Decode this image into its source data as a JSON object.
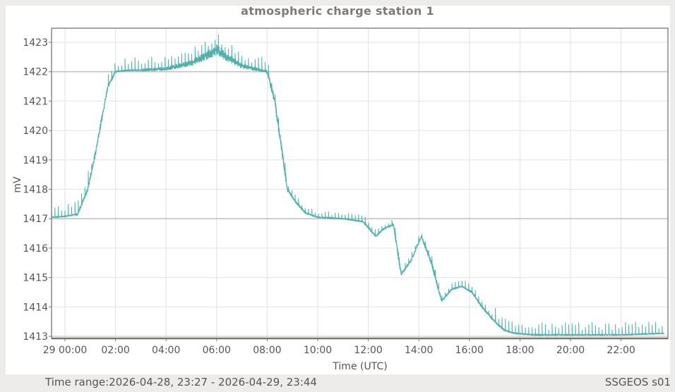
{
  "header": {
    "title": "atmospheric charge station 1"
  },
  "footer": {
    "time_range_label": "Time range:",
    "time_range_value": "2026-04-28, 23:27 - 2026-04-29, 23:44",
    "station_id": "SSGEOS s01"
  },
  "colors": {
    "series": "#4fb0ac",
    "grid": "#e2e2e2",
    "grid_major": "#c2c2c2",
    "baseline": "#c8c0a0",
    "axis": "#777777",
    "tick_text": "#555555",
    "title": "#7a7a7a"
  },
  "chart_data": {
    "type": "line",
    "title": "atmospheric charge station 1",
    "xlabel": "Time (UTC)",
    "ylabel": "mV",
    "ylim": [
      1413,
      1423
    ],
    "xlim_hours": [
      -0.55,
      23.73
    ],
    "grid": true,
    "legend": null,
    "x_ticks": [
      "29 00:00",
      "02:00",
      "04:00",
      "06:00",
      "08:00",
      "10:00",
      "12:00",
      "14:00",
      "16:00",
      "18:00",
      "20:00",
      "22:00"
    ],
    "x_tick_hours": [
      0,
      2,
      4,
      6,
      8,
      10,
      12,
      14,
      16,
      18,
      20,
      22
    ],
    "y_ticks": [
      1413,
      1414,
      1415,
      1416,
      1417,
      1418,
      1419,
      1420,
      1421,
      1422,
      1423
    ],
    "highlighted_y_gridlines": [
      1417,
      1422
    ],
    "reference_line": 1413,
    "series": [
      {
        "name": "atmospheric charge",
        "unit": "mV",
        "x_hours": [
          -0.53,
          0.0,
          0.5,
          0.9,
          1.2,
          1.5,
          1.7,
          2.0,
          2.5,
          3.0,
          4.0,
          5.0,
          5.5,
          6.0,
          6.5,
          7.0,
          8.0,
          8.3,
          8.5,
          8.8,
          9.1,
          9.5,
          10.0,
          11.0,
          11.8,
          12.3,
          12.6,
          13.0,
          13.3,
          13.7,
          14.1,
          14.5,
          14.9,
          15.3,
          15.7,
          16.1,
          16.5,
          17.0,
          17.4,
          17.8,
          18.5,
          20.0,
          22.0,
          23.7
        ],
        "values": [
          1417.05,
          1417.08,
          1417.15,
          1418.0,
          1419.2,
          1420.6,
          1421.5,
          1422.0,
          1422.05,
          1422.05,
          1422.1,
          1422.3,
          1422.5,
          1422.75,
          1422.45,
          1422.2,
          1422.0,
          1421.0,
          1419.8,
          1418.0,
          1417.6,
          1417.2,
          1417.05,
          1417.0,
          1416.9,
          1416.4,
          1416.65,
          1416.8,
          1415.1,
          1415.6,
          1416.4,
          1415.5,
          1414.2,
          1414.6,
          1414.7,
          1414.5,
          1414.0,
          1413.5,
          1413.2,
          1413.1,
          1413.05,
          1413.05,
          1413.05,
          1413.1
        ],
        "spike_amplitude_mV": 0.45
      }
    ]
  }
}
